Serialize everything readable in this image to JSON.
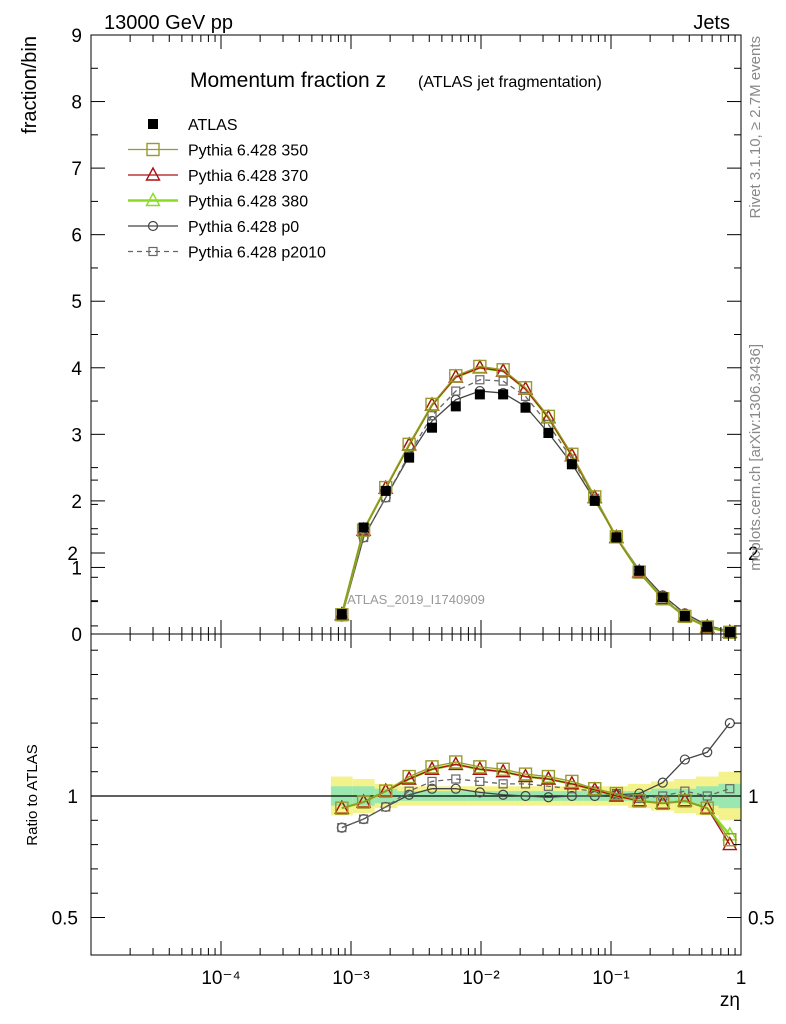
{
  "header": {
    "left": "13000 GeV pp",
    "right": "Jets"
  },
  "side_text": {
    "rivet": "Rivet 3.1.10, ≥ 2.7M events",
    "site": "mcplots.cern.ch [arXiv:1306.3436]"
  },
  "watermark": "ATLAS_2019_I1740909",
  "chart_data": [
    {
      "type": "line",
      "title": "Momentum fraction z",
      "subtitle": "(ATLAS jet fragmentation)",
      "ylabel": "fraction/bin",
      "xlabel": "zη",
      "xscale": "log",
      "xlim": [
        1e-05,
        1
      ],
      "ylim": [
        0,
        9
      ],
      "x_tick_labels": [
        "10⁻⁴",
        "10⁻³",
        "10⁻²",
        "10⁻¹",
        "1"
      ],
      "y_tick_labels": [
        "0",
        "1",
        "2",
        "3",
        "4",
        "5",
        "6",
        "7",
        "8",
        "9"
      ],
      "legend_position": "top-left",
      "x": [
        0.00085,
        0.00125,
        0.00185,
        0.0028,
        0.0042,
        0.0064,
        0.0098,
        0.0148,
        0.022,
        0.033,
        0.05,
        0.075,
        0.11,
        0.165,
        0.25,
        0.37,
        0.55,
        0.82
      ],
      "series": [
        {
          "name": "ATLAS",
          "color": "#000000",
          "marker": "filled-square",
          "line": "none",
          "values": [
            0.3,
            1.6,
            2.15,
            2.65,
            3.1,
            3.42,
            3.6,
            3.6,
            3.4,
            3.02,
            2.55,
            2.0,
            1.45,
            0.95,
            0.55,
            0.27,
            0.11,
            0.03
          ]
        },
        {
          "name": "Pythia 6.428 350",
          "color": "#9a9a2a",
          "marker": "open-square",
          "line": "solid",
          "values": [
            0.29,
            1.56,
            2.2,
            2.85,
            3.45,
            3.88,
            4.02,
            3.97,
            3.7,
            3.27,
            2.7,
            2.06,
            1.46,
            0.93,
            0.53,
            0.265,
            0.105,
            0.025
          ]
        },
        {
          "name": "Pythia 6.428 370",
          "color": "#aa1111",
          "marker": "open-triangle",
          "line": "solid",
          "values": [
            0.29,
            1.56,
            2.19,
            2.84,
            3.44,
            3.86,
            4.0,
            3.95,
            3.68,
            3.25,
            2.68,
            2.05,
            1.45,
            0.93,
            0.53,
            0.265,
            0.105,
            0.025
          ]
        },
        {
          "name": "Pythia 6.428 380",
          "color": "#88dd22",
          "marker": "open-triangle",
          "line": "solid",
          "values": [
            0.29,
            1.56,
            2.19,
            2.84,
            3.44,
            3.86,
            4.0,
            3.95,
            3.68,
            3.25,
            2.68,
            2.05,
            1.45,
            0.93,
            0.53,
            0.265,
            0.105,
            0.026
          ]
        },
        {
          "name": "Pythia 6.428 p0",
          "color": "#444444",
          "marker": "open-circle",
          "line": "solid",
          "values": [
            0.26,
            1.45,
            2.05,
            2.67,
            3.2,
            3.52,
            3.65,
            3.62,
            3.42,
            3.02,
            2.56,
            2.01,
            1.46,
            0.96,
            0.58,
            0.31,
            0.13,
            0.04
          ]
        },
        {
          "name": "Pythia 6.428 p2010",
          "color": "#666666",
          "marker": "open-square-small",
          "line": "dashed",
          "values": [
            0.26,
            1.45,
            2.05,
            2.7,
            3.28,
            3.65,
            3.82,
            3.8,
            3.57,
            3.15,
            2.63,
            2.04,
            1.47,
            0.94,
            0.55,
            0.28,
            0.11,
            0.03
          ]
        }
      ]
    },
    {
      "type": "line",
      "ylabel": "Ratio to ATLAS",
      "xlabel": "zη",
      "xscale": "log",
      "ylim": [
        0.38,
        2.4
      ],
      "y_tick_labels": [
        "0.5",
        "1",
        "2"
      ],
      "reference": 1,
      "band_inner": [
        0.04,
        0.04,
        0.03,
        0.02,
        0.02,
        0.02,
        0.02,
        0.02,
        0.02,
        0.02,
        0.02,
        0.02,
        0.02,
        0.02,
        0.03,
        0.03,
        0.04,
        0.05
      ],
      "band_outer": [
        0.08,
        0.07,
        0.05,
        0.04,
        0.04,
        0.04,
        0.04,
        0.04,
        0.04,
        0.04,
        0.04,
        0.04,
        0.04,
        0.05,
        0.06,
        0.07,
        0.08,
        0.1
      ],
      "series": [
        {
          "name": "Pythia 6.428 350",
          "values": [
            0.95,
            0.975,
            1.02,
            1.08,
            1.12,
            1.14,
            1.12,
            1.11,
            1.09,
            1.08,
            1.06,
            1.03,
            1.01,
            0.98,
            0.97,
            0.98,
            0.95,
            0.82
          ]
        },
        {
          "name": "Pythia 6.428 370",
          "values": [
            0.95,
            0.975,
            1.02,
            1.07,
            1.11,
            1.13,
            1.11,
            1.1,
            1.08,
            1.07,
            1.05,
            1.025,
            1.0,
            0.98,
            0.97,
            0.98,
            0.95,
            0.8
          ]
        },
        {
          "name": "Pythia 6.428 380",
          "values": [
            0.95,
            0.975,
            1.02,
            1.07,
            1.11,
            1.13,
            1.11,
            1.1,
            1.08,
            1.07,
            1.05,
            1.025,
            1.0,
            0.98,
            0.97,
            0.98,
            0.95,
            0.84
          ]
        },
        {
          "name": "Pythia 6.428 p0",
          "values": [
            0.87,
            0.905,
            0.955,
            1.005,
            1.03,
            1.03,
            1.015,
            1.005,
            1.0,
            0.995,
            1.0,
            1.0,
            1.005,
            1.01,
            1.055,
            1.15,
            1.18,
            1.3
          ]
        },
        {
          "name": "Pythia 6.428 p2010",
          "values": [
            0.87,
            0.905,
            0.955,
            1.02,
            1.06,
            1.07,
            1.06,
            1.05,
            1.05,
            1.04,
            1.03,
            1.02,
            1.01,
            0.99,
            1.0,
            1.02,
            1.0,
            1.03
          ]
        }
      ]
    }
  ]
}
